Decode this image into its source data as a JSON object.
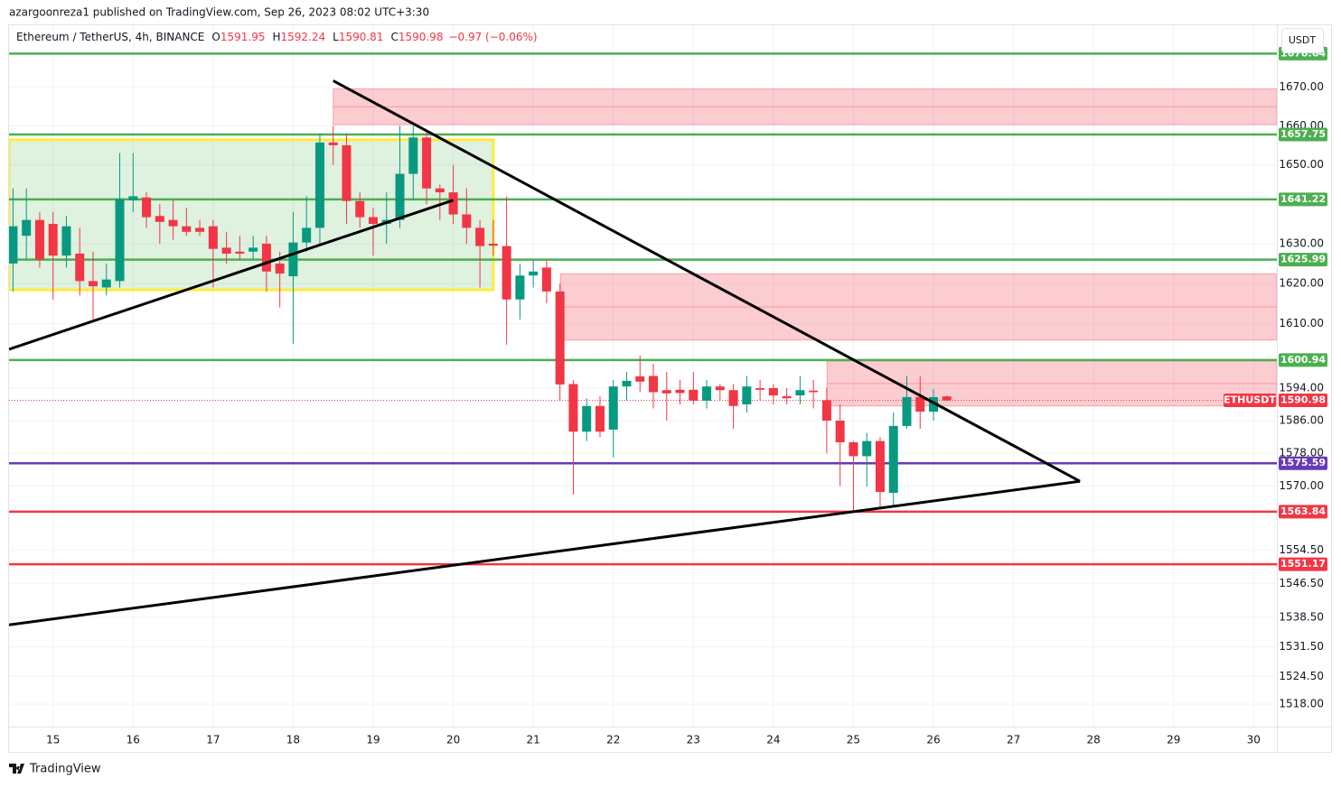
{
  "header": {
    "published": "azargoonreza1 published on TradingView.com, Sep 26, 2023 08:02 UTC+3:30",
    "symbol": "Ethereum / TetherUS, 4h, BINANCE",
    "ohlc": [
      {
        "key": "O",
        "value": 1591.95
      },
      {
        "key": "H",
        "value": 1592.24
      },
      {
        "key": "L",
        "value": 1590.81
      },
      {
        "key": "C",
        "value": 1590.98
      }
    ],
    "change": "−0.97 (−0.06%)",
    "currency": "USDT"
  },
  "footer": {
    "brand": "TradingView"
  },
  "chart_data": {
    "type": "candlestick",
    "log_scale": true,
    "grid": true,
    "up_color": "#089981",
    "down_color": "#f23645",
    "xlim": [
      14.45,
      30.29
    ],
    "ylim": [
      1512.7,
      1686
    ],
    "xticks": [
      15,
      16,
      17,
      18,
      19,
      20,
      21,
      22,
      23,
      24,
      25,
      26,
      27,
      28,
      29,
      30
    ],
    "yticks": [
      {
        "value": 1670,
        "label": "1670.00"
      },
      {
        "value": 1660,
        "label": "1660.00"
      },
      {
        "value": 1650,
        "label": "1650.00"
      },
      {
        "value": 1630,
        "label": "1630.00"
      },
      {
        "value": 1620,
        "label": "1620.00"
      },
      {
        "value": 1610,
        "label": "1610.00"
      },
      {
        "value": 1594,
        "label": "1594.00"
      },
      {
        "value": 1586,
        "label": "1586.00"
      },
      {
        "value": 1578,
        "label": "1578.00"
      },
      {
        "value": 1570,
        "label": "1570.00"
      },
      {
        "value": 1554.5,
        "label": "1554.50"
      },
      {
        "value": 1546.5,
        "label": "1546.50"
      },
      {
        "value": 1538.5,
        "label": "1538.50"
      },
      {
        "value": 1531.5,
        "label": "1531.50"
      },
      {
        "value": 1524.5,
        "label": "1524.50"
      },
      {
        "value": 1518,
        "label": "1518.00"
      }
    ],
    "x": [
      14.5,
      14.6667,
      14.8333,
      15,
      15.1667,
      15.3333,
      15.5,
      15.6667,
      15.8333,
      16,
      16.1667,
      16.3333,
      16.5,
      16.6667,
      16.8333,
      17,
      17.1667,
      17.3333,
      17.5,
      17.6667,
      17.8333,
      18,
      18.1667,
      18.3333,
      18.5,
      18.6667,
      18.8333,
      19,
      19.1667,
      19.3333,
      19.5,
      19.6667,
      19.8333,
      20,
      20.1667,
      20.3333,
      20.5,
      20.6667,
      20.8333,
      21,
      21.1667,
      21.3333,
      21.5,
      21.6667,
      21.8333,
      22,
      22.1667,
      22.3333,
      22.5,
      22.6667,
      22.8333,
      23,
      23.1667,
      23.3333,
      23.5,
      23.6667,
      23.8333,
      24,
      24.1667,
      24.3333,
      24.5,
      24.6667,
      24.8333,
      25,
      25.1667,
      25.3333,
      25.5,
      25.6667,
      25.8333,
      26,
      26.1667
    ],
    "open": [
      1625,
      1632,
      1636,
      1635,
      1627,
      1627.5,
      1620.6,
      1619,
      1620.6,
      1641,
      1641.7,
      1637,
      1636,
      1634.4,
      1634,
      1634.4,
      1629,
      1628,
      1628,
      1630,
      1625,
      1621.8,
      1630.3,
      1634,
      1655.7,
      1655,
      1640.8,
      1636.7,
      1635,
      1636,
      1647.7,
      1657,
      1644,
      1643,
      1637.4,
      1634,
      1630,
      1629.4,
      1616,
      1622,
      1624,
      1618,
      1595,
      1583.3,
      1589.6,
      1583.8,
      1594.4,
      1596.9,
      1597,
      1593.5,
      1593.6,
      1593.6,
      1590.9,
      1594.4,
      1593.5,
      1590,
      1594,
      1594,
      1592,
      1592.2,
      1593.4,
      1591,
      1586,
      1580.7,
      1577.3,
      1581,
      1568.4,
      1584.7,
      1591.8,
      1588.2,
      1591.95
    ],
    "high": [
      1644,
      1644,
      1638,
      1638,
      1637,
      1634,
      1628,
      1625,
      1653,
      1653,
      1643,
      1640,
      1641,
      1639,
      1636,
      1636,
      1633,
      1632,
      1632,
      1632,
      1628,
      1638,
      1642,
      1658,
      1660,
      1658,
      1643,
      1639,
      1643,
      1660,
      1660,
      1659,
      1645,
      1650,
      1644,
      1636,
      1636,
      1642,
      1625,
      1626,
      1626,
      1620,
      1596,
      1591.5,
      1592,
      1596,
      1598,
      1602,
      1600,
      1598,
      1596,
      1598,
      1596,
      1595,
      1595,
      1597,
      1596,
      1595,
      1594,
      1597,
      1596,
      1594,
      1590,
      1581,
      1583,
      1582,
      1588,
      1597,
      1597,
      1593.8,
      1592.24
    ],
    "low": [
      1618,
      1626,
      1624,
      1616,
      1624,
      1617,
      1611,
      1617,
      1619,
      1638,
      1634,
      1630,
      1631,
      1632,
      1632,
      1619,
      1625,
      1626,
      1626,
      1618,
      1614,
      1605,
      1628,
      1630,
      1650,
      1635,
      1634,
      1627,
      1630,
      1634,
      1641,
      1640,
      1636,
      1635,
      1630,
      1619,
      1627,
      1604.7,
      1611,
      1619,
      1615,
      1591,
      1568,
      1581,
      1582,
      1577,
      1591,
      1593,
      1589,
      1586,
      1590,
      1590,
      1589,
      1591,
      1584,
      1588,
      1591,
      1590,
      1590,
      1590,
      1589,
      1578,
      1570,
      1563.84,
      1570,
      1565,
      1565,
      1584,
      1584,
      1586,
      1590.81
    ],
    "close": [
      1634.4,
      1636,
      1626,
      1627,
      1634.4,
      1620.6,
      1619.3,
      1621,
      1641.3,
      1642,
      1636.7,
      1635.5,
      1634.4,
      1633,
      1633,
      1628.7,
      1627.5,
      1627.5,
      1629,
      1623,
      1622.5,
      1630.3,
      1634,
      1655.7,
      1655,
      1640.8,
      1636.7,
      1635,
      1636,
      1647.7,
      1657,
      1644,
      1643,
      1637.4,
      1634,
      1629.4,
      1629.5,
      1616,
      1622,
      1623,
      1618,
      1594.9,
      1583.3,
      1589.6,
      1583.3,
      1594.4,
      1595.8,
      1595.6,
      1593,
      1592.7,
      1592.8,
      1590.9,
      1594.4,
      1593.5,
      1589.6,
      1594.4,
      1593.6,
      1592.2,
      1591.5,
      1593.5,
      1593,
      1586,
      1580.7,
      1577.3,
      1581,
      1568.6,
      1584.7,
      1591.8,
      1588.2,
      1591.8,
      1590.98
    ],
    "levels": [
      {
        "value": 1678.64,
        "color": "#4caf50"
      },
      {
        "value": 1657.75,
        "color": "#4caf50"
      },
      {
        "value": 1641.22,
        "color": "#4caf50"
      },
      {
        "value": 1625.99,
        "color": "#4caf50"
      },
      {
        "value": 1600.94,
        "color": "#4caf50"
      },
      {
        "value": 1575.59,
        "color": "#673ab7"
      },
      {
        "value": 1563.84,
        "color": "#f23645"
      },
      {
        "value": 1551.17,
        "color": "#f23645"
      }
    ],
    "last_price": {
      "name": "ETHUSDT",
      "value": 1590.98,
      "color": "#f23645"
    },
    "zones": [
      {
        "from": 18.5,
        "top": 1669.5,
        "bottom": 1660.3
      },
      {
        "from": 21.34,
        "top": 1622.4,
        "bottom": 1605.9
      },
      {
        "from": 24.67,
        "top": 1600.7,
        "bottom": 1589.6
      }
    ],
    "box": {
      "x0": 14.45,
      "x1": 20.5,
      "top": 1656.4,
      "bottom": 1618.4
    },
    "trend_lines": [
      {
        "points": [
          [
            18.5,
            1671.6
          ],
          [
            27.83,
            1571.2
          ]
        ]
      },
      {
        "points": [
          [
            14.45,
            1536.7
          ],
          [
            27.83,
            1571.2
          ]
        ]
      },
      {
        "points": [
          [
            14.45,
            1603.6
          ],
          [
            20.0,
            1641
          ]
        ]
      }
    ]
  }
}
